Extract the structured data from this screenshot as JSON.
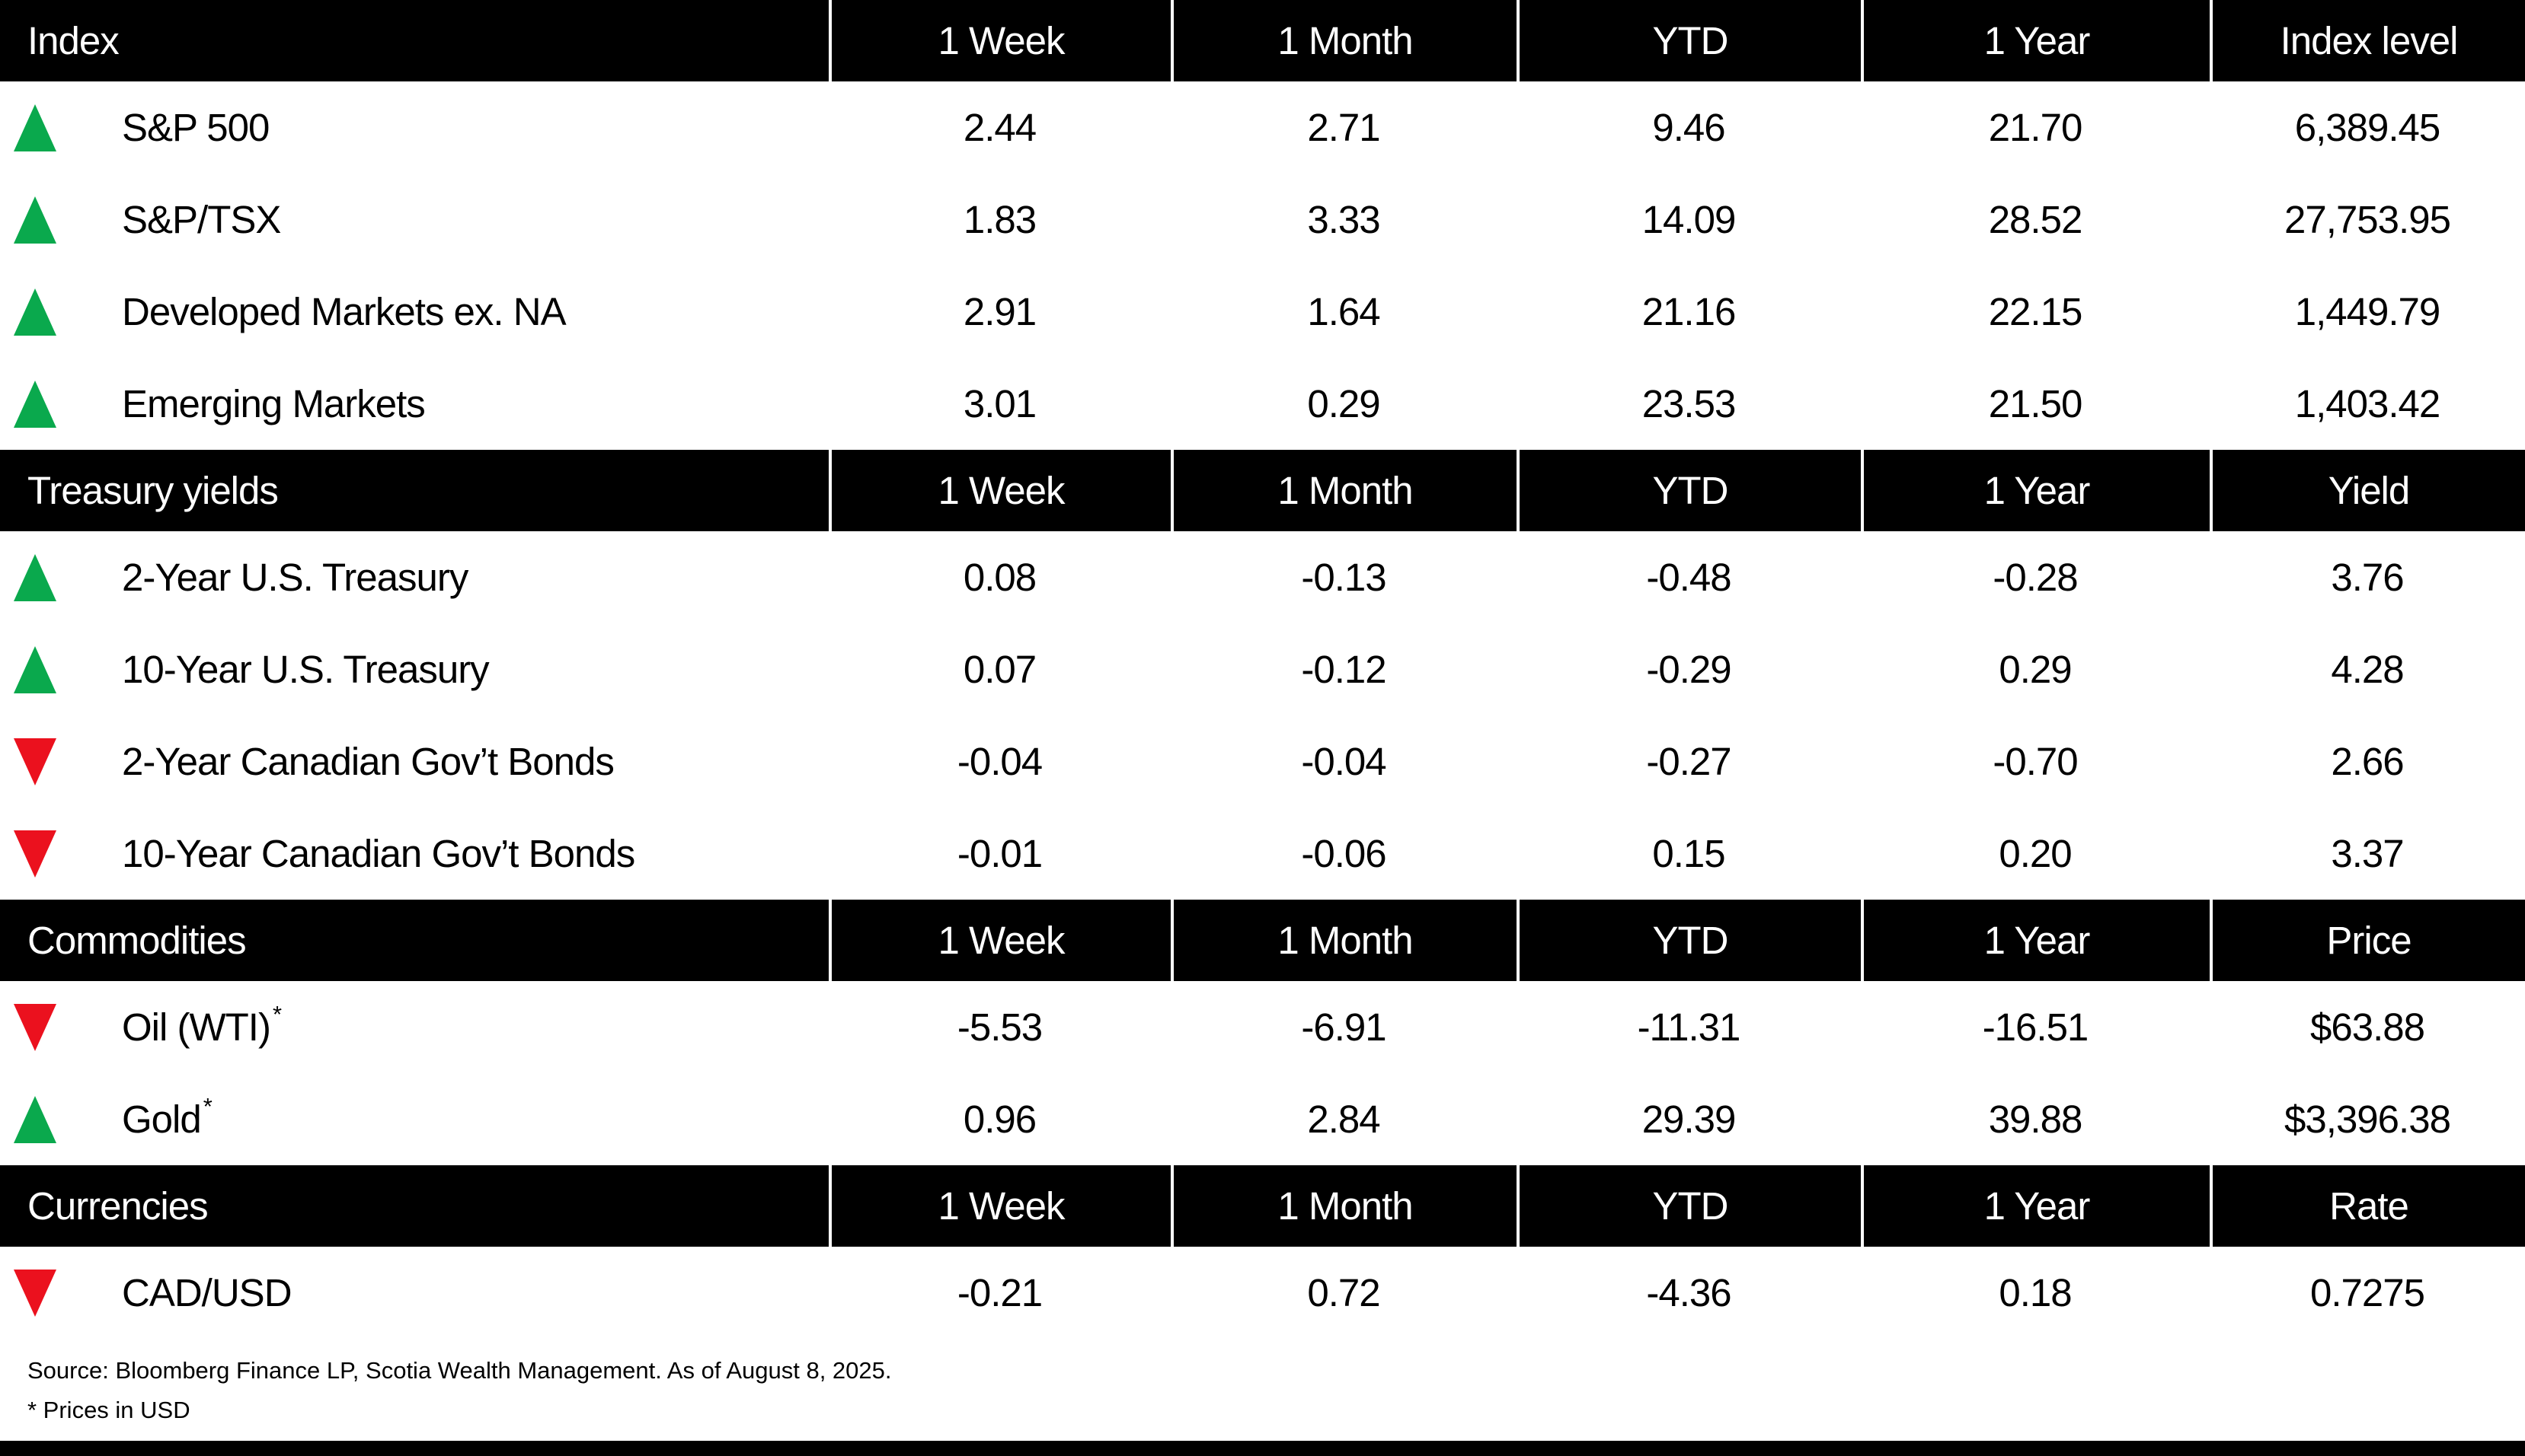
{
  "colors": {
    "up_green": "#0AA94D",
    "down_red": "#EB111E",
    "header_bg": "#000000",
    "header_text": "#FFFFFF"
  },
  "sections": [
    {
      "title": "Index",
      "columns": [
        "1 Week",
        "1 Month",
        "YTD",
        "1 Year",
        "Index level"
      ],
      "rows": [
        {
          "dir": "up",
          "label": "S&P 500",
          "sup": "",
          "values": [
            "2.44",
            "2.71",
            "9.46",
            "21.70",
            "6,389.45"
          ]
        },
        {
          "dir": "up",
          "label": "S&P/TSX",
          "sup": "",
          "values": [
            "1.83",
            "3.33",
            "14.09",
            "28.52",
            "27,753.95"
          ]
        },
        {
          "dir": "up",
          "label": "Developed Markets ex. NA",
          "sup": "",
          "values": [
            "2.91",
            "1.64",
            "21.16",
            "22.15",
            "1,449.79"
          ]
        },
        {
          "dir": "up",
          "label": "Emerging Markets",
          "sup": "",
          "values": [
            "3.01",
            "0.29",
            "23.53",
            "21.50",
            "1,403.42"
          ]
        }
      ]
    },
    {
      "title": "Treasury yields",
      "columns": [
        "1 Week",
        "1 Month",
        "YTD",
        "1 Year",
        "Yield"
      ],
      "rows": [
        {
          "dir": "up",
          "label": "2-Year U.S. Treasury",
          "sup": "",
          "values": [
            "0.08",
            "-0.13",
            "-0.48",
            "-0.28",
            "3.76"
          ]
        },
        {
          "dir": "up",
          "label": "10-Year U.S. Treasury",
          "sup": "",
          "values": [
            "0.07",
            "-0.12",
            "-0.29",
            "0.29",
            "4.28"
          ]
        },
        {
          "dir": "down",
          "label": "2-Year Canadian Gov’t Bonds",
          "sup": "",
          "values": [
            "-0.04",
            "-0.04",
            "-0.27",
            "-0.70",
            "2.66"
          ]
        },
        {
          "dir": "down",
          "label": "10-Year Canadian Gov’t Bonds",
          "sup": "",
          "values": [
            "-0.01",
            "-0.06",
            "0.15",
            "0.20",
            "3.37"
          ]
        }
      ]
    },
    {
      "title": "Commodities",
      "columns": [
        "1 Week",
        "1 Month",
        "YTD",
        "1 Year",
        "Price"
      ],
      "rows": [
        {
          "dir": "down",
          "label": "Oil (WTI)",
          "sup": "*",
          "values": [
            "-5.53",
            "-6.91",
            "-11.31",
            "-16.51",
            "$63.88"
          ]
        },
        {
          "dir": "up",
          "label": "Gold",
          "sup": "*",
          "values": [
            "0.96",
            "2.84",
            "29.39",
            "39.88",
            "$3,396.38"
          ]
        }
      ]
    },
    {
      "title": "Currencies",
      "columns": [
        "1 Week",
        "1 Month",
        "YTD",
        "1 Year",
        "Rate"
      ],
      "rows": [
        {
          "dir": "down",
          "label": "CAD/USD",
          "sup": "",
          "values": [
            "-0.21",
            "0.72",
            "-4.36",
            "0.18",
            "0.7275"
          ]
        }
      ]
    }
  ],
  "footer": {
    "source": "Source: Bloomberg Finance LP, Scotia Wealth Management. As of August 8, 2025.",
    "note": "* Prices in USD"
  },
  "chart_data": {
    "type": "table",
    "column_headers": [
      "1 Week",
      "1 Month",
      "YTD",
      "1 Year"
    ],
    "sections": [
      {
        "name": "Index",
        "last_column": "Index level",
        "rows": [
          {
            "label": "S&P 500",
            "direction": "up",
            "values": [
              2.44,
              2.71,
              9.46,
              21.7
            ],
            "level": 6389.45
          },
          {
            "label": "S&P/TSX",
            "direction": "up",
            "values": [
              1.83,
              3.33,
              14.09,
              28.52
            ],
            "level": 27753.95
          },
          {
            "label": "Developed Markets ex. NA",
            "direction": "up",
            "values": [
              2.91,
              1.64,
              21.16,
              22.15
            ],
            "level": 1449.79
          },
          {
            "label": "Emerging Markets",
            "direction": "up",
            "values": [
              3.01,
              0.29,
              23.53,
              21.5
            ],
            "level": 1403.42
          }
        ]
      },
      {
        "name": "Treasury yields",
        "last_column": "Yield",
        "rows": [
          {
            "label": "2-Year U.S. Treasury",
            "direction": "up",
            "values": [
              0.08,
              -0.13,
              -0.48,
              -0.28
            ],
            "level": 3.76
          },
          {
            "label": "10-Year U.S. Treasury",
            "direction": "up",
            "values": [
              0.07,
              -0.12,
              -0.29,
              0.29
            ],
            "level": 4.28
          },
          {
            "label": "2-Year Canadian Gov’t Bonds",
            "direction": "down",
            "values": [
              -0.04,
              -0.04,
              -0.27,
              -0.7
            ],
            "level": 2.66
          },
          {
            "label": "10-Year Canadian Gov’t Bonds",
            "direction": "down",
            "values": [
              -0.01,
              -0.06,
              0.15,
              0.2
            ],
            "level": 3.37
          }
        ]
      },
      {
        "name": "Commodities",
        "last_column": "Price",
        "rows": [
          {
            "label": "Oil (WTI)*",
            "direction": "down",
            "values": [
              -5.53,
              -6.91,
              -11.31,
              -16.51
            ],
            "level": 63.88,
            "level_display": "$63.88"
          },
          {
            "label": "Gold*",
            "direction": "up",
            "values": [
              0.96,
              2.84,
              29.39,
              39.88
            ],
            "level": 3396.38,
            "level_display": "$3,396.38"
          }
        ]
      },
      {
        "name": "Currencies",
        "last_column": "Rate",
        "rows": [
          {
            "label": "CAD/USD",
            "direction": "down",
            "values": [
              -0.21,
              0.72,
              -4.36,
              0.18
            ],
            "level": 0.7275
          }
        ]
      }
    ],
    "footnotes": [
      "Source: Bloomberg Finance LP, Scotia Wealth Management. As of August 8, 2025.",
      "* Prices in USD"
    ]
  }
}
